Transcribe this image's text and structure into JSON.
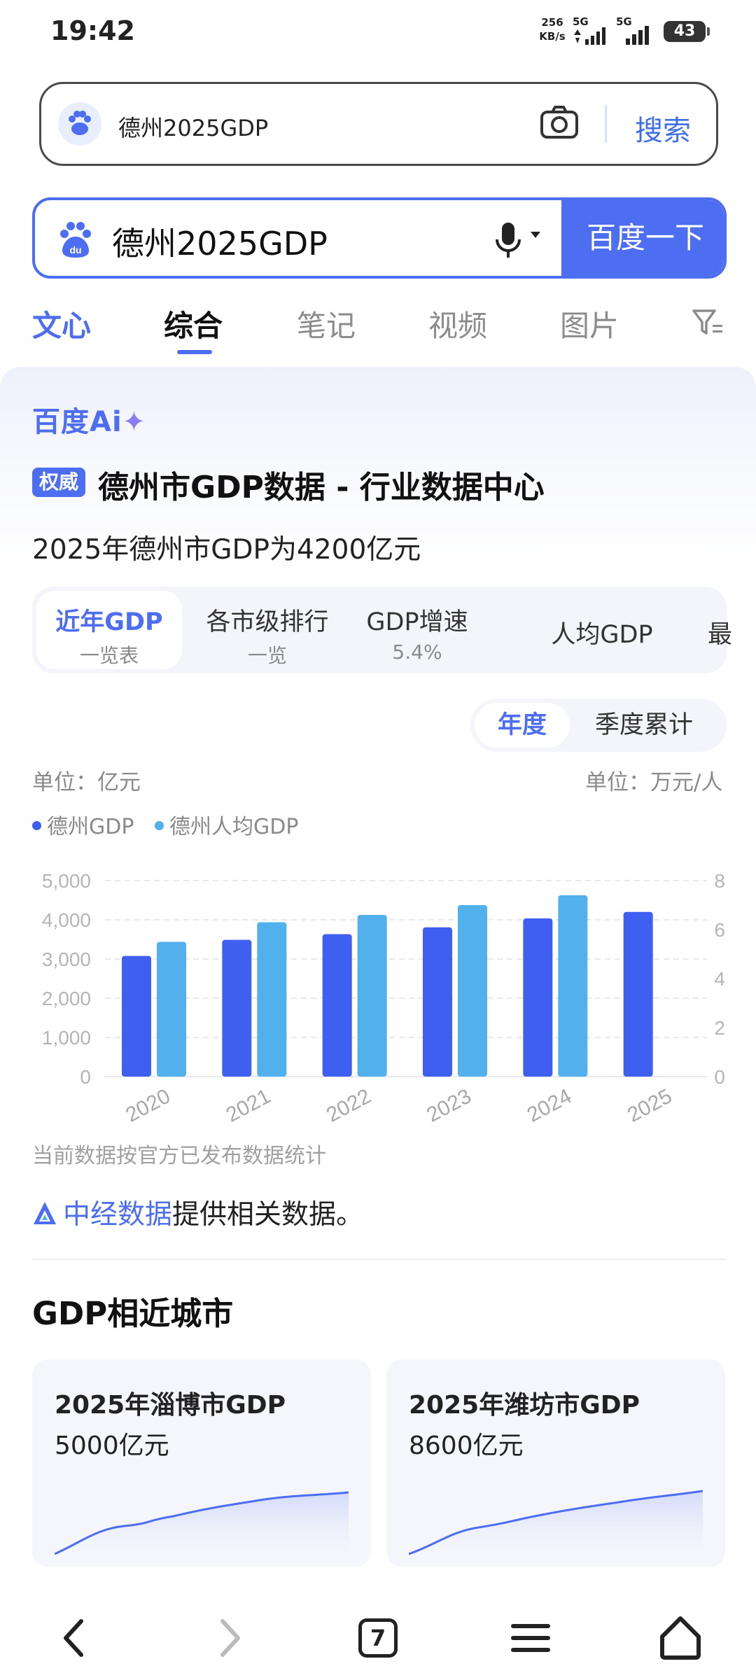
{
  "status_bar": {
    "time": "19:42",
    "net_speed_value": "256",
    "net_speed_unit": "KB/s",
    "signal_1": "5G",
    "signal_2": "5G",
    "battery": "43"
  },
  "browser": {
    "address_query": "德州2025GDP",
    "search_button": "搜索"
  },
  "search": {
    "query": "德州2025GDP",
    "submit_label": "百度一下"
  },
  "tabs": {
    "wenxin": "文心",
    "zonghe": "综合",
    "notes": "笔记",
    "video": "视频",
    "images": "图片"
  },
  "ai_card": {
    "logo_text": "百度Ai",
    "logo_sparkle": "✦",
    "badge": "权威",
    "source_title": "德州市GDP数据 - 行业数据中心",
    "answer": "2025年德州市GDP为4200亿元",
    "subtabs": [
      {
        "main": "近年GDP",
        "sub": "一览表"
      },
      {
        "main": "各市级排行",
        "sub": "一览"
      },
      {
        "main": "GDP增速",
        "sub": "5.4%"
      },
      {
        "main": "人均GDP",
        "sub": ""
      },
      {
        "main": "最",
        "sub": ""
      }
    ],
    "period_year": "年度",
    "period_quarter": "季度累计",
    "unit_left": "单位：亿元",
    "unit_right": "单位：万元/人",
    "footnote": "当前数据按官方已发布数据统计",
    "provider_name": "中经数据",
    "provider_suffix": "提供相关数据。"
  },
  "chart_data": {
    "type": "bar",
    "categories": [
      "2020",
      "2021",
      "2022",
      "2023",
      "2024",
      "2025"
    ],
    "series": [
      {
        "name": "德州GDP",
        "axis": "left",
        "color": "#3f5ff0",
        "values": [
          3079,
          3489,
          3633,
          3808,
          4036,
          4200
        ]
      },
      {
        "name": "德州人均GDP",
        "axis": "right",
        "color": "#52b1ec",
        "values": [
          5.5,
          6.3,
          6.6,
          7.0,
          7.4,
          null
        ]
      }
    ],
    "ylim_left": [
      0,
      5000
    ],
    "yticks_left": [
      "0",
      "1,000",
      "2,000",
      "3,000",
      "4,000",
      "5,000"
    ],
    "ylim_right": [
      0,
      8
    ],
    "yticks_right": [
      "0",
      "2",
      "4",
      "6",
      "8"
    ],
    "ylabel_left": "单位：亿元",
    "ylabel_right": "单位：万元/人",
    "grid": true,
    "legend": "top-left"
  },
  "similar_cities": {
    "title": "GDP相近城市",
    "cards": [
      {
        "title": "2025年淄博市GDP",
        "value": "5000亿元"
      },
      {
        "title": "2025年潍坊市GDP",
        "value": "8600亿元"
      }
    ]
  },
  "bottom_nav": {
    "tab_count": "7"
  },
  "colors": {
    "accent": "#4e6ef2",
    "gdp_bar": "#3f5ff0",
    "per_capita_bar": "#52b1ec"
  },
  "icons": [
    "camera-icon",
    "baidu-paw-icon",
    "mic-icon",
    "filter-icon",
    "back-icon",
    "forward-icon",
    "tabs-icon",
    "menu-icon",
    "home-icon",
    "provider-logo-icon"
  ]
}
